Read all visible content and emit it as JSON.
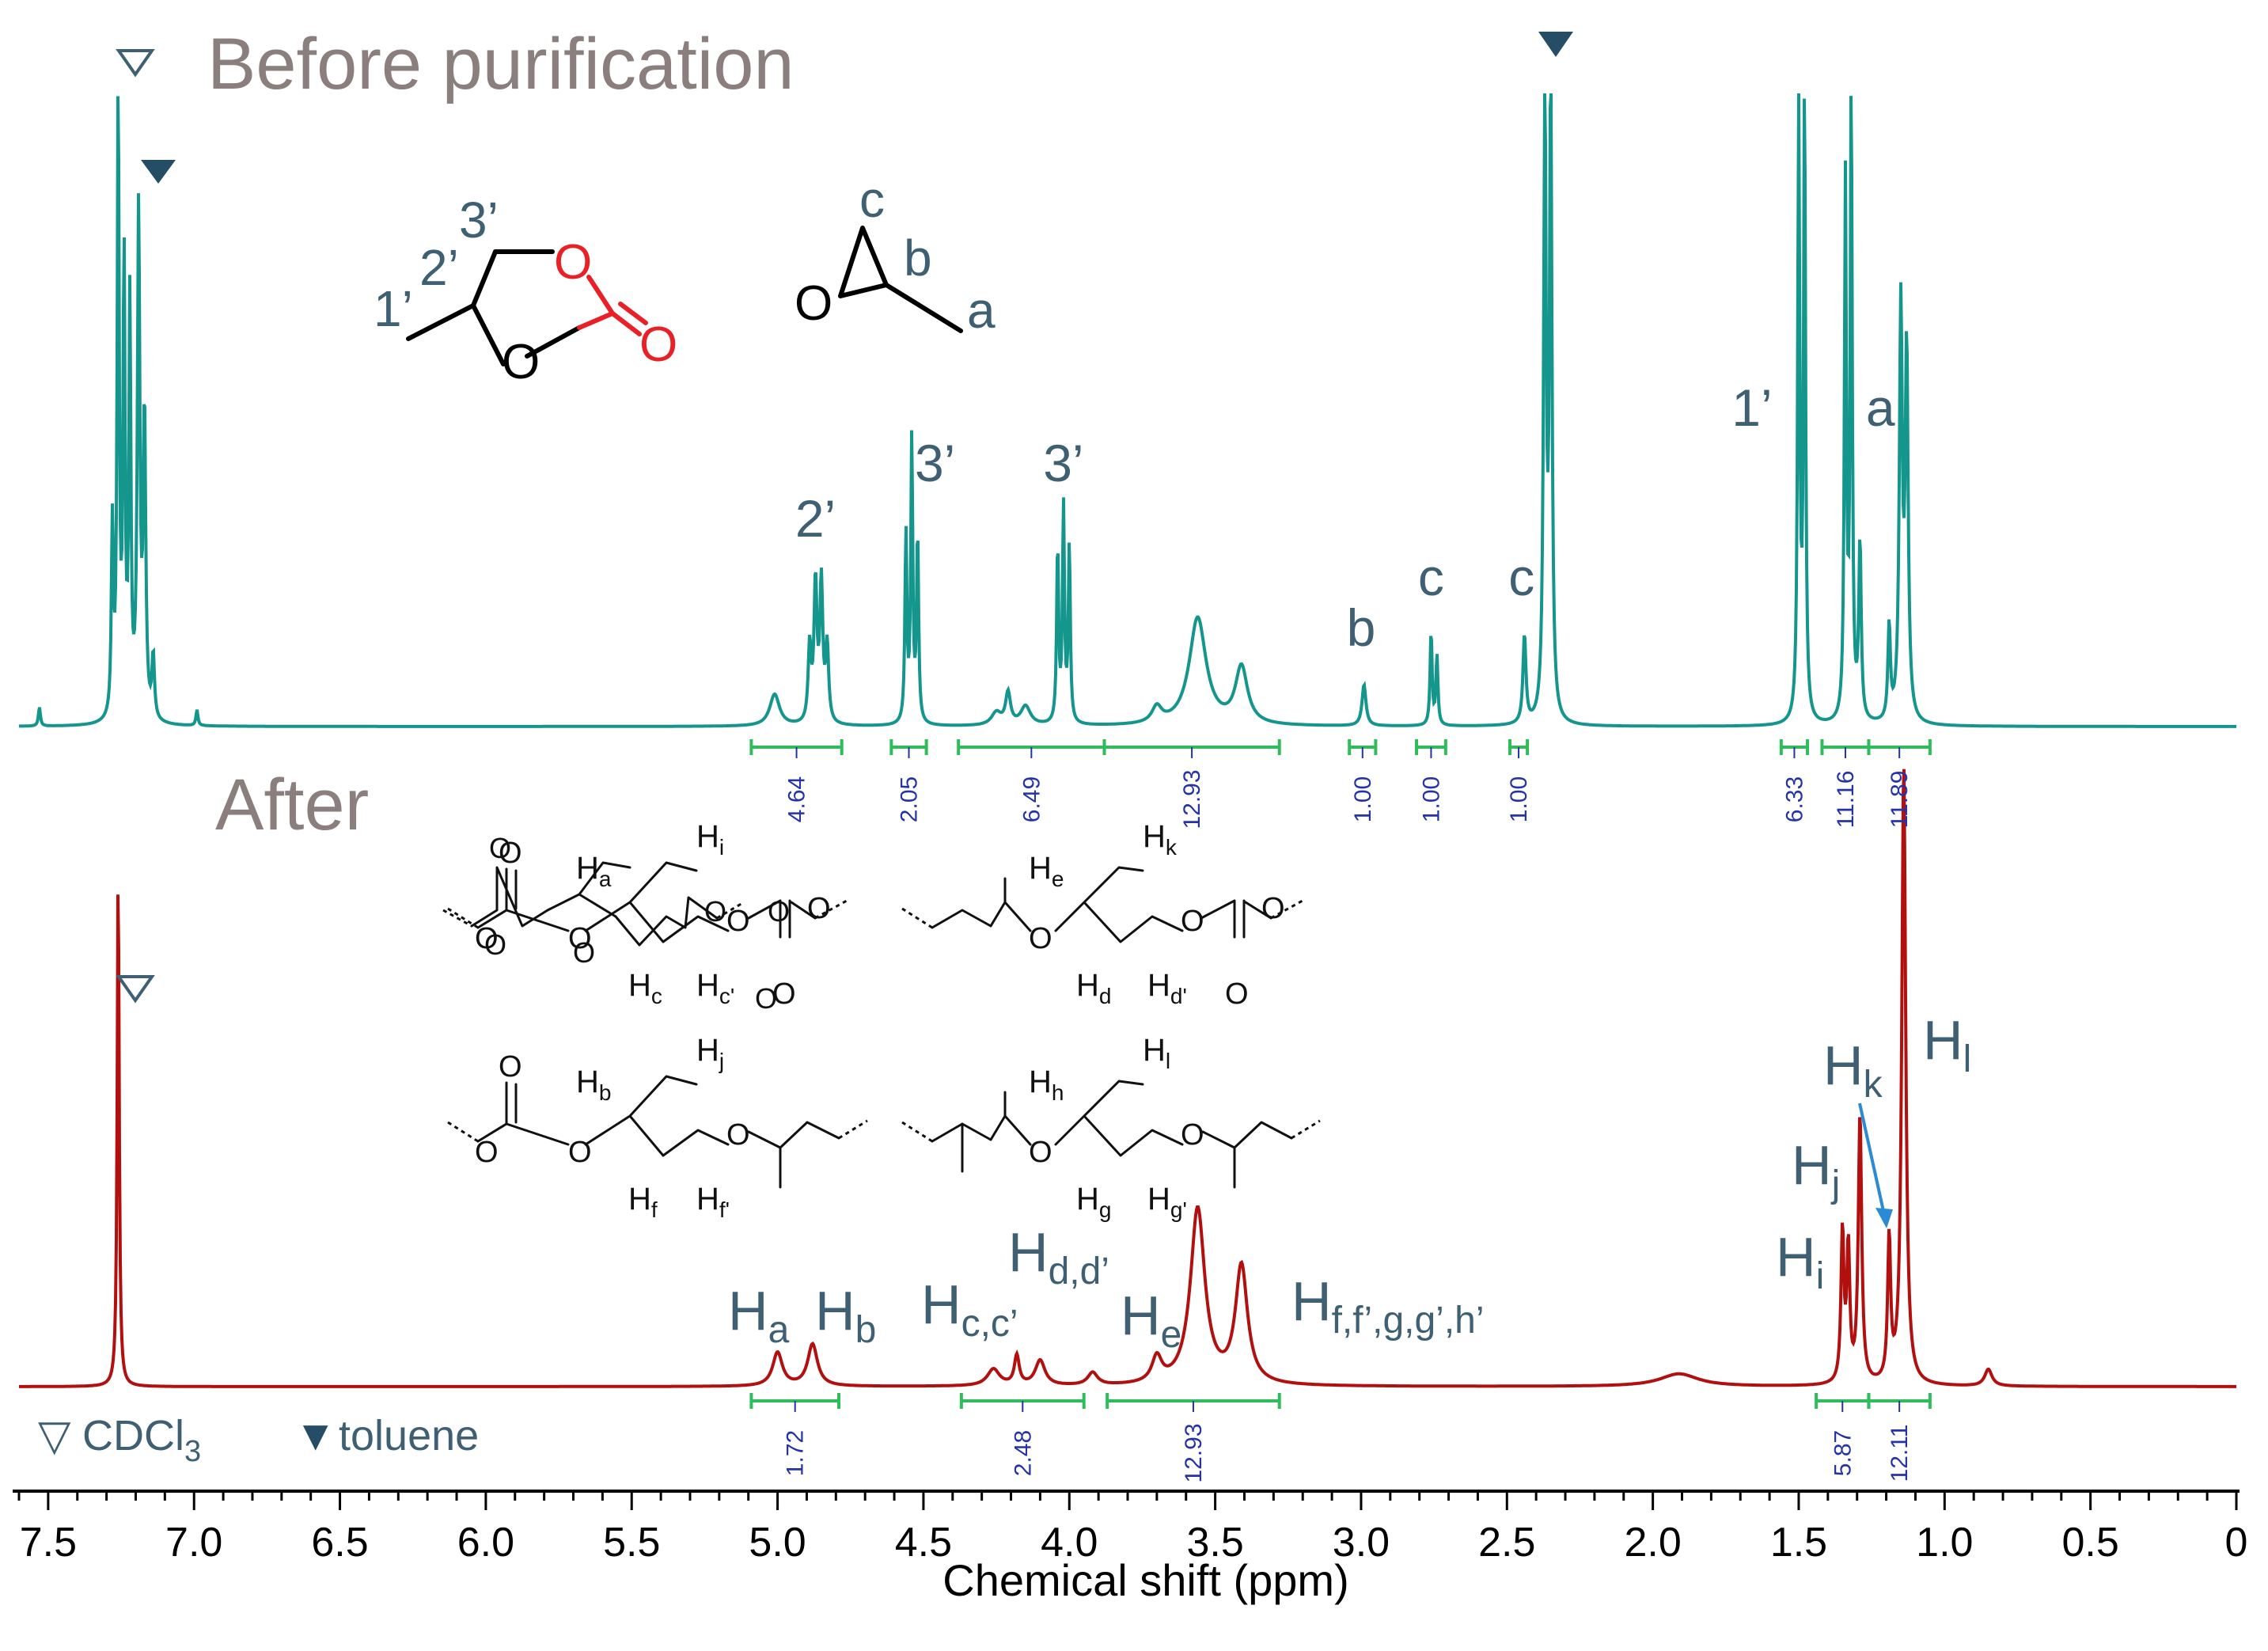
{
  "chart_data": {
    "type": "line",
    "xlabel": "Chemical shift (ppm)",
    "xlim": [
      7.6,
      0
    ],
    "xticks": [
      7.5,
      7.0,
      6.5,
      6.0,
      5.5,
      5.0,
      4.5,
      4.0,
      3.5,
      3.0,
      2.5,
      2.0,
      1.5,
      1.0,
      0.5,
      0
    ],
    "xtick_labels": [
      "7.5",
      "7.0",
      "6.5",
      "6.0",
      "5.5",
      "5.0",
      "4.5",
      "4.0",
      "3.5",
      "3.0",
      "2.5",
      "2.0",
      "1.5",
      "1.0",
      "0.5",
      "0"
    ],
    "series": [
      {
        "name": "Before purification",
        "color": "#14968c",
        "peaks": [
          {
            "ppm": 7.53,
            "h": 0.03,
            "w": 0.004
          },
          {
            "ppm": 7.28,
            "h": 0.3,
            "w": 0.004
          },
          {
            "ppm": 7.26,
            "h": 1.0,
            "w": 0.004
          },
          {
            "ppm": 7.24,
            "h": 0.72,
            "w": 0.004
          },
          {
            "ppm": 7.22,
            "h": 0.65,
            "w": 0.004
          },
          {
            "ppm": 7.19,
            "h": 0.8,
            "w": 0.005
          },
          {
            "ppm": 7.17,
            "h": 0.48,
            "w": 0.005
          },
          {
            "ppm": 7.14,
            "h": 0.1,
            "w": 0.005
          },
          {
            "ppm": 6.99,
            "h": 0.025,
            "w": 0.004
          },
          {
            "ppm": 5.01,
            "h": 0.05,
            "w": 0.02
          },
          {
            "ppm": 4.89,
            "h": 0.12,
            "w": 0.006
          },
          {
            "ppm": 4.87,
            "h": 0.22,
            "w": 0.006
          },
          {
            "ppm": 4.85,
            "h": 0.22,
            "w": 0.006
          },
          {
            "ppm": 4.83,
            "h": 0.12,
            "w": 0.006
          },
          {
            "ppm": 4.56,
            "h": 0.3,
            "w": 0.004
          },
          {
            "ppm": 4.54,
            "h": 0.45,
            "w": 0.004
          },
          {
            "ppm": 4.52,
            "h": 0.3,
            "w": 0.004
          },
          {
            "ppm": 4.25,
            "h": 0.02,
            "w": 0.02
          },
          {
            "ppm": 4.21,
            "h": 0.05,
            "w": 0.01
          },
          {
            "ppm": 4.15,
            "h": 0.03,
            "w": 0.02
          },
          {
            "ppm": 4.04,
            "h": 0.28,
            "w": 0.004
          },
          {
            "ppm": 4.02,
            "h": 0.34,
            "w": 0.004
          },
          {
            "ppm": 4.0,
            "h": 0.28,
            "w": 0.004
          },
          {
            "ppm": 3.7,
            "h": 0.025,
            "w": 0.02
          },
          {
            "ppm": 3.56,
            "h": 0.17,
            "w": 0.035
          },
          {
            "ppm": 3.41,
            "h": 0.09,
            "w": 0.025
          },
          {
            "ppm": 2.99,
            "h": 0.065,
            "w": 0.008
          },
          {
            "ppm": 2.76,
            "h": 0.15,
            "w": 0.004
          },
          {
            "ppm": 2.74,
            "h": 0.11,
            "w": 0.004
          },
          {
            "ppm": 2.44,
            "h": 0.14,
            "w": 0.006
          },
          {
            "ppm": 2.37,
            "h": 1.0,
            "w": 0.005
          },
          {
            "ppm": 2.35,
            "h": 1.0,
            "w": 0.005
          },
          {
            "ppm": 1.5,
            "h": 1.0,
            "w": 0.004
          },
          {
            "ppm": 1.48,
            "h": 1.0,
            "w": 0.004
          },
          {
            "ppm": 1.34,
            "h": 0.85,
            "w": 0.004
          },
          {
            "ppm": 1.32,
            "h": 1.0,
            "w": 0.004
          },
          {
            "ppm": 1.29,
            "h": 0.28,
            "w": 0.005
          },
          {
            "ppm": 1.19,
            "h": 0.15,
            "w": 0.005
          },
          {
            "ppm": 1.15,
            "h": 0.65,
            "w": 0.006
          },
          {
            "ppm": 1.13,
            "h": 0.58,
            "w": 0.006
          }
        ],
        "integrals": [
          {
            "from": 5.09,
            "to": 4.78,
            "value": "4.64"
          },
          {
            "from": 4.61,
            "to": 4.49,
            "value": "2.05"
          },
          {
            "from": 4.38,
            "to": 3.88,
            "value": "6.49"
          },
          {
            "from": 3.88,
            "to": 3.28,
            "value": "12.93"
          },
          {
            "from": 3.04,
            "to": 2.95,
            "value": "1.00"
          },
          {
            "from": 2.81,
            "to": 2.71,
            "value": "1.00"
          },
          {
            "from": 2.49,
            "to": 2.43,
            "value": "1.00"
          },
          {
            "from": 1.56,
            "to": 1.47,
            "value": "6.33"
          },
          {
            "from": 1.42,
            "to": 1.26,
            "value": "11.16"
          },
          {
            "from": 1.26,
            "to": 1.05,
            "value": "11.89"
          }
        ]
      },
      {
        "name": "After",
        "color": "#b2100f",
        "peaks": [
          {
            "ppm": 7.26,
            "h": 0.62,
            "w": 0.004
          },
          {
            "ppm": 5.0,
            "h": 0.04,
            "w": 0.02
          },
          {
            "ppm": 4.88,
            "h": 0.05,
            "w": 0.02
          },
          {
            "ppm": 4.26,
            "h": 0.02,
            "w": 0.025
          },
          {
            "ppm": 4.18,
            "h": 0.035,
            "w": 0.01
          },
          {
            "ppm": 4.1,
            "h": 0.03,
            "w": 0.02
          },
          {
            "ppm": 3.92,
            "h": 0.015,
            "w": 0.02
          },
          {
            "ppm": 3.7,
            "h": 0.03,
            "w": 0.02
          },
          {
            "ppm": 3.56,
            "h": 0.21,
            "w": 0.03
          },
          {
            "ppm": 3.41,
            "h": 0.14,
            "w": 0.025
          },
          {
            "ppm": 1.91,
            "h": 0.015,
            "w": 0.08
          },
          {
            "ppm": 1.35,
            "h": 0.18,
            "w": 0.006
          },
          {
            "ppm": 1.33,
            "h": 0.16,
            "w": 0.006
          },
          {
            "ppm": 1.29,
            "h": 0.32,
            "w": 0.007
          },
          {
            "ppm": 1.19,
            "h": 0.17,
            "w": 0.006
          },
          {
            "ppm": 1.14,
            "h": 0.74,
            "w": 0.008
          },
          {
            "ppm": 0.85,
            "h": 0.02,
            "w": 0.015
          }
        ],
        "integrals": [
          {
            "from": 5.09,
            "to": 4.79,
            "value": "1.72"
          },
          {
            "from": 4.37,
            "to": 3.95,
            "value": "2.48"
          },
          {
            "from": 3.87,
            "to": 3.28,
            "value": "12.93"
          },
          {
            "from": 1.44,
            "to": 1.26,
            "value": "5.87"
          },
          {
            "from": 1.26,
            "to": 1.05,
            "value": "12.11"
          }
        ]
      }
    ],
    "annotations": {
      "before_title": "Before purification",
      "after_title": "After",
      "peak_labels_top": [
        {
          "ppm": 4.87,
          "text": "2’"
        },
        {
          "ppm": 4.46,
          "text": "3’"
        },
        {
          "ppm": 4.02,
          "text": "3’"
        },
        {
          "ppm": 3.0,
          "text": "b"
        },
        {
          "ppm": 2.76,
          "text": "c"
        },
        {
          "ppm": 2.45,
          "text": "c"
        },
        {
          "ppm": 1.66,
          "text": "1’"
        },
        {
          "ppm": 1.22,
          "text": "a"
        }
      ],
      "propylene_carbonate_labels": [
        "1’",
        "2’",
        "3’"
      ],
      "propylene_oxide_labels": [
        "c",
        "b",
        "a"
      ],
      "oxygen_symbol": "O",
      "legend_cdcl3_symbol": "▽",
      "legend_cdcl3_text": "CDCl",
      "legend_cdcl3_sub": "3",
      "legend_toluene_symbol": "▼",
      "legend_toluene_text": "toluene",
      "h_labels_bottom": [
        {
          "main": "H",
          "sub": "a"
        },
        {
          "main": "H",
          "sub": "b"
        },
        {
          "main": "H",
          "sub": "c,c’"
        },
        {
          "main": "H",
          "sub": "d,d’"
        },
        {
          "main": "H",
          "sub": "e"
        },
        {
          "main": "H",
          "sub": "f,f’,g,g’,h’"
        },
        {
          "main": "H",
          "sub": "i"
        },
        {
          "main": "H",
          "sub": "j"
        },
        {
          "main": "H",
          "sub": "k"
        },
        {
          "main": "H",
          "sub": "l"
        }
      ],
      "polymer_unit_labels": [
        {
          "main": "H",
          "sub": "a"
        },
        {
          "main": "H",
          "sub": "i"
        },
        {
          "main": "H",
          "sub": "c"
        },
        {
          "main": "H",
          "sub": "c'"
        },
        {
          "main": "H",
          "sub": "e"
        },
        {
          "main": "H",
          "sub": "k"
        },
        {
          "main": "H",
          "sub": "d"
        },
        {
          "main": "H",
          "sub": "d'"
        },
        {
          "main": "H",
          "sub": "b"
        },
        {
          "main": "H",
          "sub": "j"
        },
        {
          "main": "H",
          "sub": "f"
        },
        {
          "main": "H",
          "sub": "f'"
        },
        {
          "main": "H",
          "sub": "h"
        },
        {
          "main": "H",
          "sub": "l"
        },
        {
          "main": "H",
          "sub": "g"
        },
        {
          "main": "H",
          "sub": "g'"
        }
      ]
    },
    "colors": {
      "before": "#14968c",
      "after": "#b2100f",
      "integral": "#2fbd5c",
      "integral_text": "#2433a8",
      "label": "#3f5f72",
      "title": "#8a7f7c",
      "toluene_marker": "#254e66",
      "arrow": "#2b8ad6"
    }
  }
}
